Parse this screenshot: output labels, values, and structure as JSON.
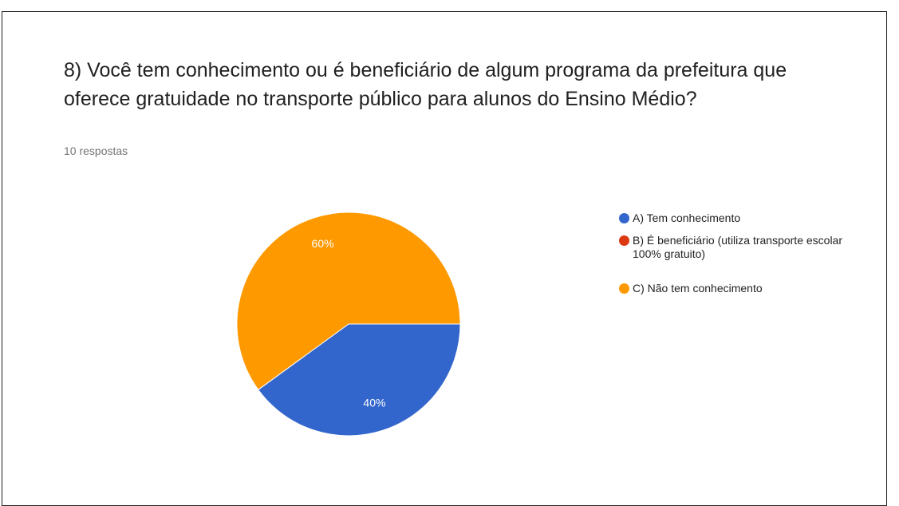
{
  "chart_data": {
    "type": "pie",
    "title": "8) Você tem conhecimento ou é beneficiário de algum programa da prefeitura que oferece gratuidade no transporte público para alunos do Ensino Médio?",
    "subtitle": "10 respostas",
    "categories": [
      "A) Tem conhecimento",
      "B) É beneficiário (utiliza transporte escolar 100% gratuito)",
      "C) Não tem conhecimento"
    ],
    "values": [
      40,
      0,
      60
    ],
    "value_labels": [
      "40%",
      null,
      "60%"
    ],
    "colors": [
      "#3366cc",
      "#dc3912",
      "#ff9900"
    ],
    "legend": "right"
  }
}
